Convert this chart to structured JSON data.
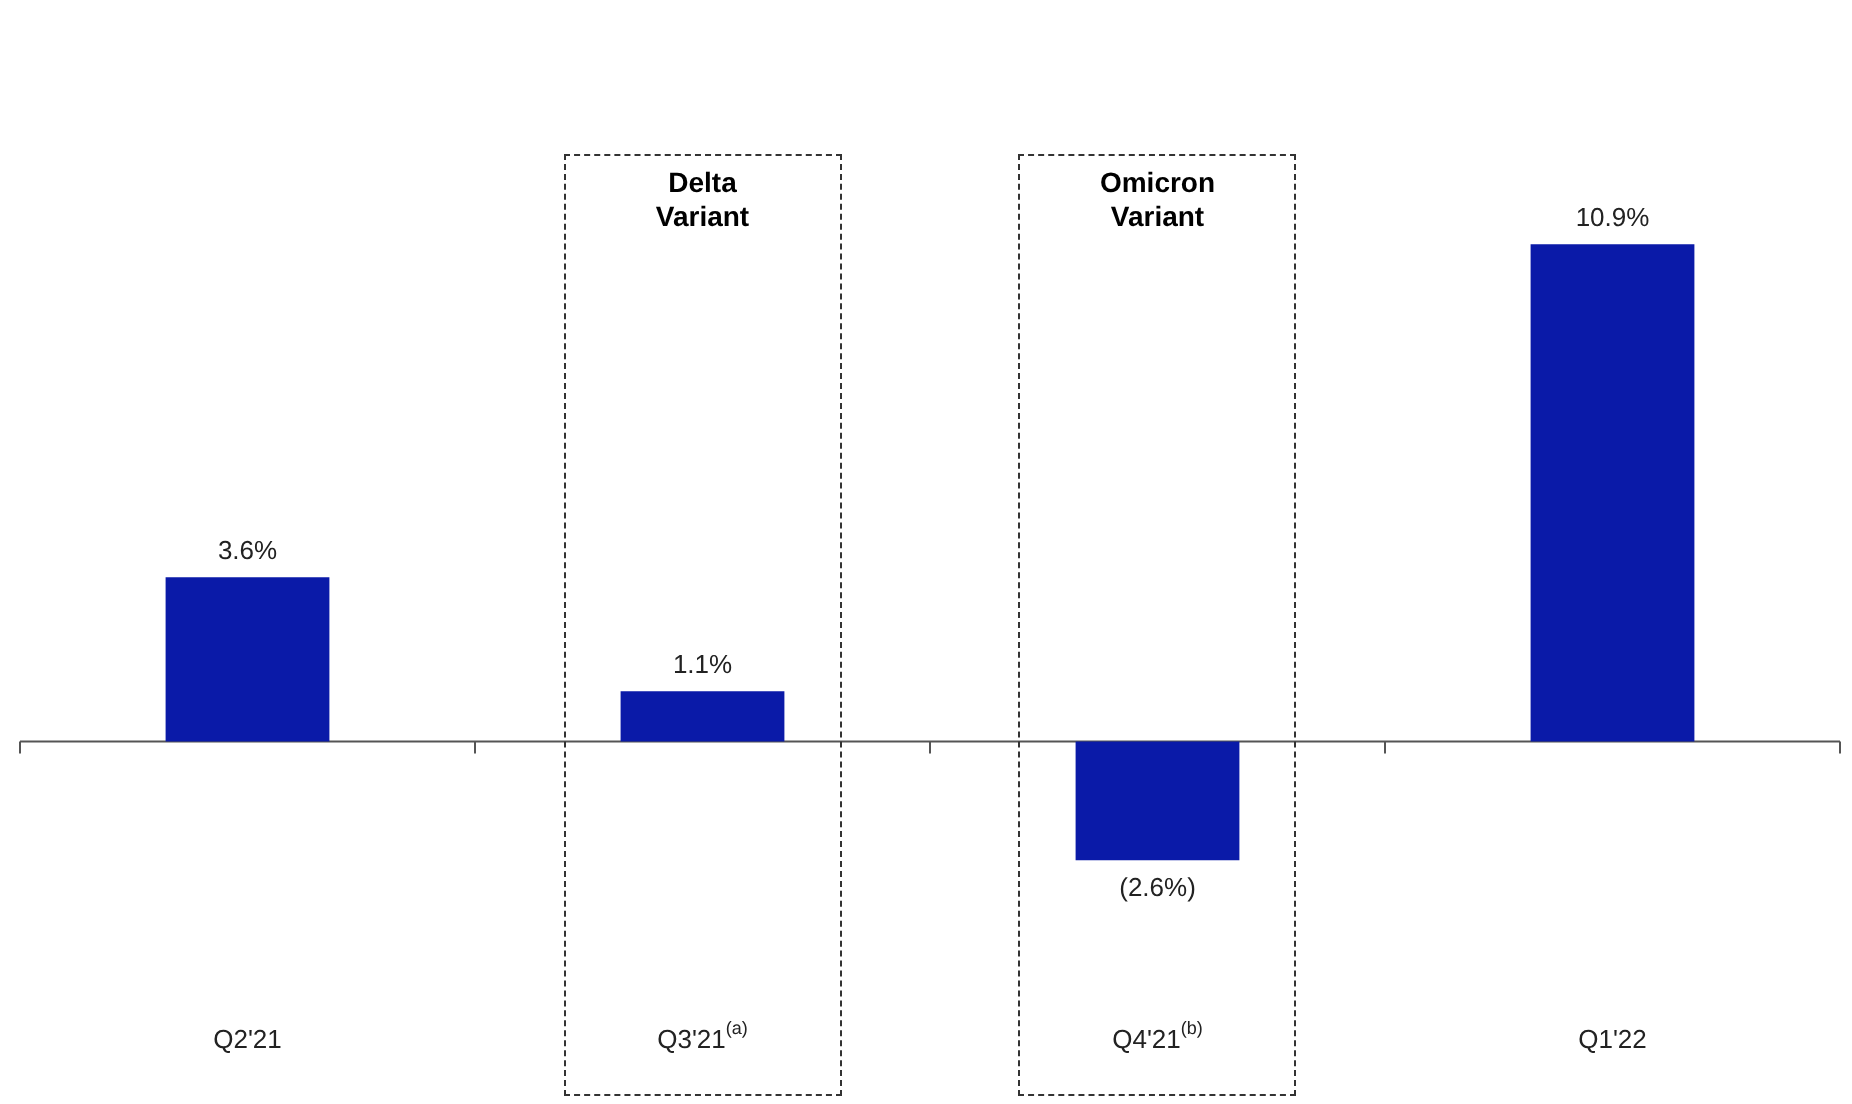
{
  "chart_data": {
    "type": "bar",
    "categories": [
      "Q2'21",
      "Q3'21$^{(a)}$",
      "Q4'21$^{(b)}$",
      "Q1'22"
    ],
    "values": [
      3.6,
      1.1,
      -2.6,
      10.9
    ],
    "value_labels": [
      "3.6%",
      "1.1%",
      "(2.6%)",
      "10.9%"
    ],
    "color": "#0a1aa8",
    "tick_labels": "x",
    "legend": false,
    "annotations": [
      "Delta Variant",
      "Omicron Variant"
    ]
  }
}
